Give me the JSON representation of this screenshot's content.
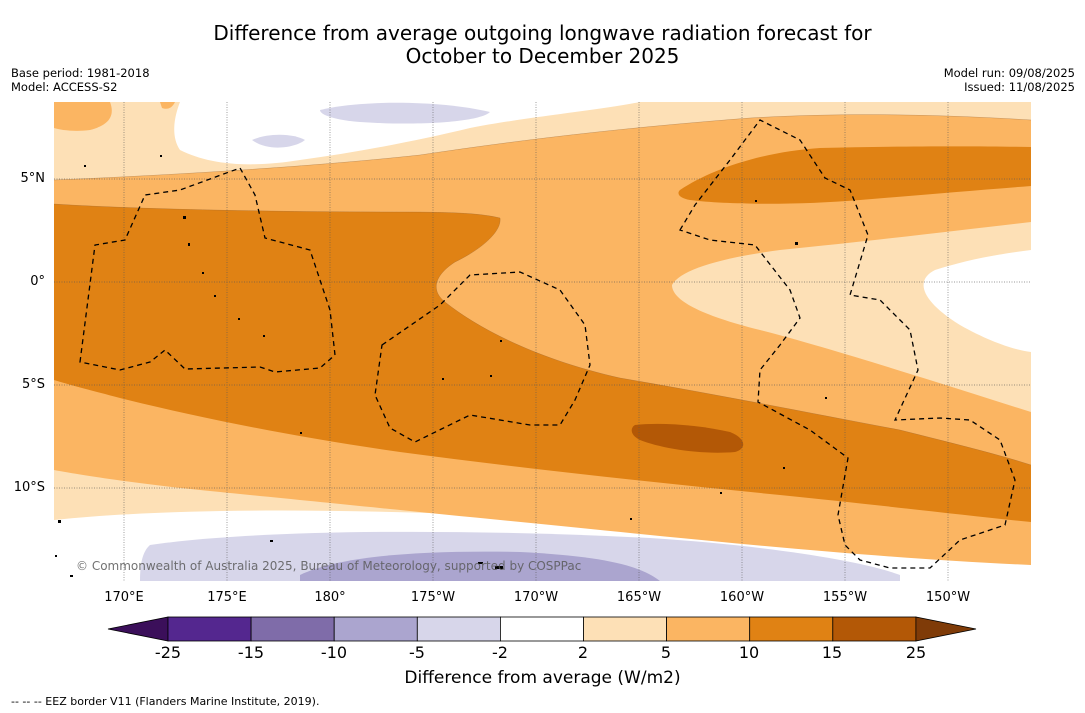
{
  "title_line1": "Difference from average outgoing longwave radiation forecast for",
  "title_line2": "October to December 2025",
  "base_period": "Base period: 1981-2018",
  "model": "Model: ACCESS-S2",
  "model_run": "Model run: 09/08/2025",
  "issued": "Issued: 11/08/2025",
  "lat_labels": [
    "5°N",
    "0°",
    "5°S",
    "10°S"
  ],
  "lon_labels": [
    "170°E",
    "175°E",
    "180°",
    "175°W",
    "170°W",
    "165°W",
    "160°W",
    "155°W",
    "150°W"
  ],
  "colorbar": {
    "ticks": [
      "-25",
      "-15",
      "-10",
      "-5",
      "-2",
      "2",
      "5",
      "10",
      "15",
      "25"
    ],
    "colors": [
      "#3b0f5a",
      "#54278f",
      "#7f6ca9",
      "#aba5cf",
      "#d7d6ea",
      "#ffffff",
      "#fde0b6",
      "#fbb562",
      "#e08214",
      "#b35806",
      "#7f3b08"
    ],
    "title": "Difference from average (W/m2)"
  },
  "copyright": "© Commonwealth of Australia 2025, Bureau of Meteorology, supported by COSPPac",
  "footer": "--  --  -- EEZ border V11 (Flanders Marine Institute, 2019)."
}
